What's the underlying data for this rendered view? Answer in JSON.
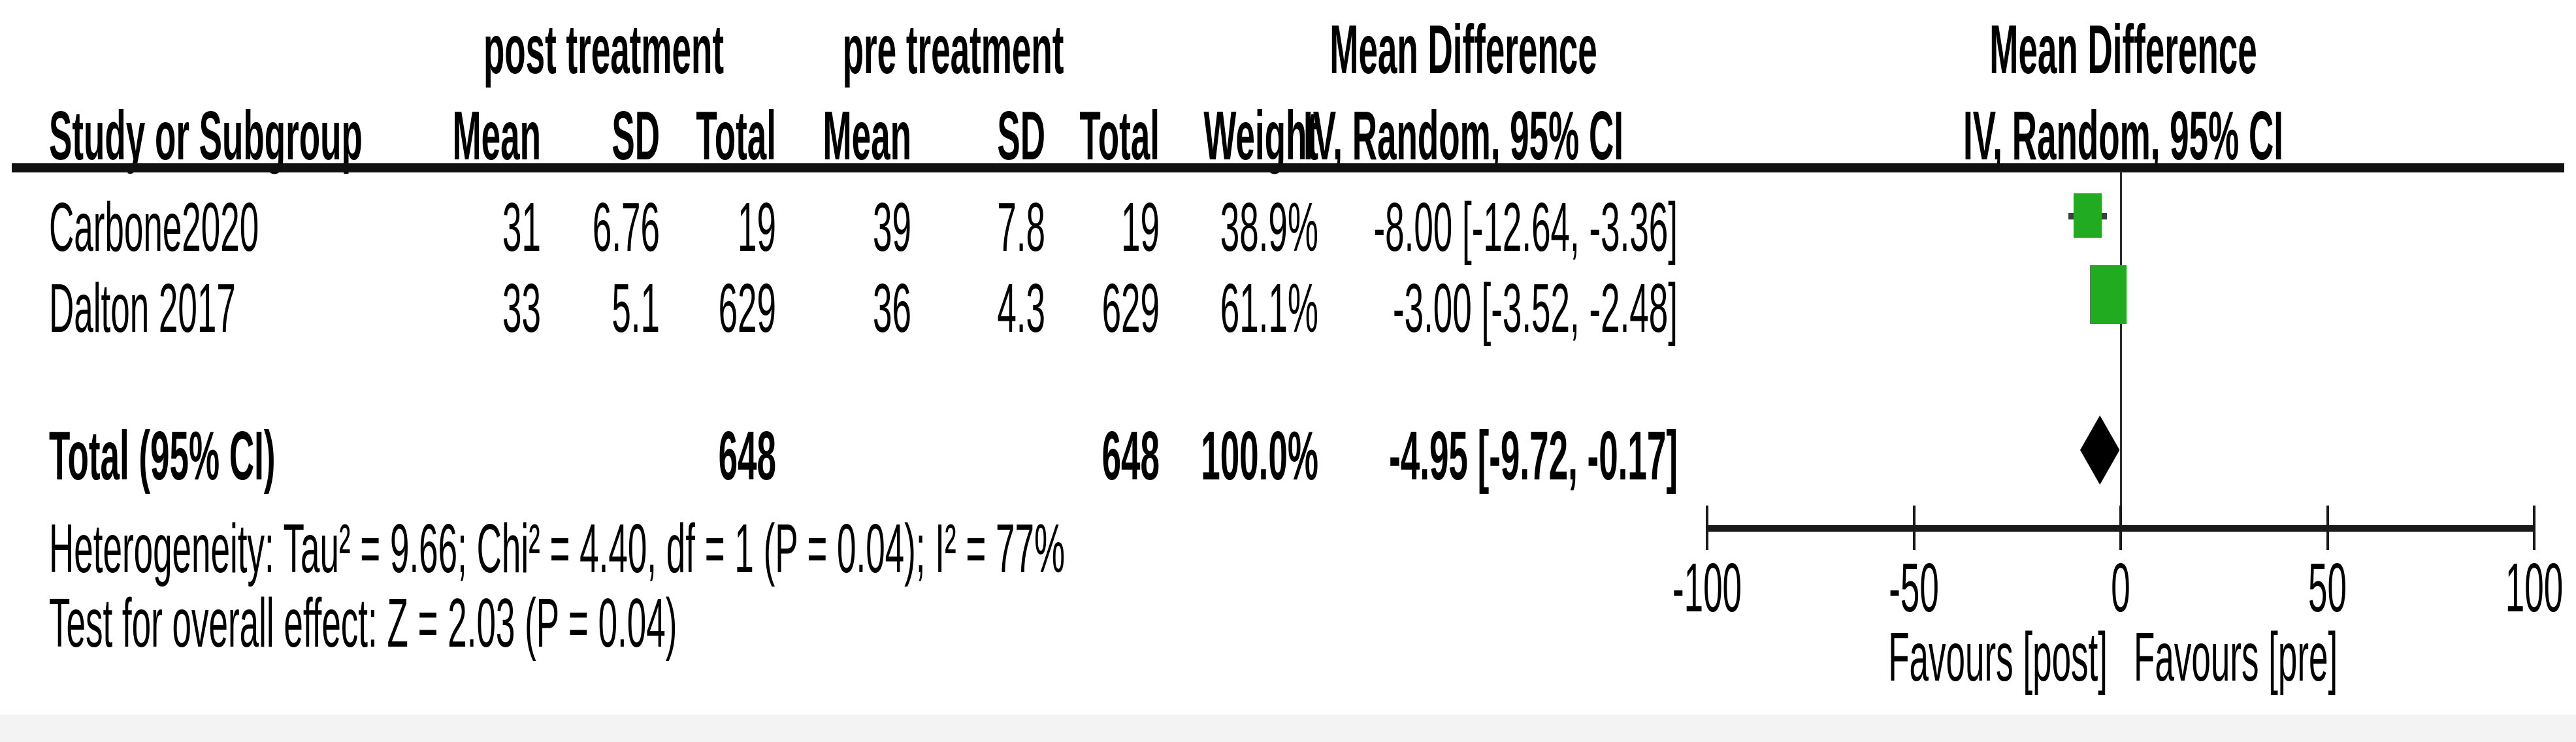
{
  "accent_colors": {
    "square_green": "#21ab21",
    "diamond_black": "#000000",
    "whisker_gray": "#3f3f3f"
  },
  "header": {
    "group_post": "post treatment",
    "group_pre": "pre treatment",
    "md_text_title": "Mean Difference",
    "md_text_subtitle": "IV, Random, 95% CI",
    "md_plot_title": "Mean Difference",
    "md_plot_subtitle": "IV, Random, 95% CI",
    "study": "Study or Subgroup",
    "post_mean": "Mean",
    "post_sd": "SD",
    "post_total": "Total",
    "pre_mean": "Mean",
    "pre_sd": "SD",
    "pre_total": "Total",
    "weight": "Weight"
  },
  "rows": [
    {
      "study": "Carbone2020",
      "post_mean": "31",
      "post_sd": "6.76",
      "post_total": "19",
      "pre_mean": "39",
      "pre_sd": "7.8",
      "pre_total": "19",
      "weight": "38.9%",
      "ci": "-8.00 [-12.64, -3.36]"
    },
    {
      "study": "Dalton 2017",
      "post_mean": "33",
      "post_sd": "5.1",
      "post_total": "629",
      "pre_mean": "36",
      "pre_sd": "4.3",
      "pre_total": "629",
      "weight": "61.1%",
      "ci": "-3.00 [-3.52, -2.48]"
    }
  ],
  "total_row": {
    "label": "Total (95% CI)",
    "post_total": "648",
    "pre_total": "648",
    "weight": "100.0%",
    "ci": "-4.95 [-9.72, -0.17]"
  },
  "footnotes": {
    "heterogeneity": "Heterogeneity: Tau² = 9.66; Chi² = 4.40, df = 1 (P = 0.04); I² = 77%",
    "overall_effect": "Test for overall effect: Z = 2.03 (P = 0.04)"
  },
  "axis": {
    "tick_labels": [
      "-100",
      "-50",
      "0",
      "50",
      "100"
    ],
    "favours_left": "Favours [post]",
    "favours_right": "Favours [pre]"
  },
  "chart_data": {
    "type": "forest",
    "effect_measure": "Mean Difference, IV, Random, 95% CI",
    "x_axis": {
      "min": -100,
      "max": 100,
      "ticks": [
        -100,
        -50,
        0,
        50,
        100
      ],
      "label_left": "Favours [post]",
      "label_right": "Favours [pre]"
    },
    "studies": [
      {
        "name": "Carbone2020",
        "post_mean": 31,
        "post_sd": 6.76,
        "post_total": 19,
        "pre_mean": 39,
        "pre_sd": 7.8,
        "pre_total": 19,
        "weight_pct": 38.9,
        "md": -8.0,
        "ci_low": -12.64,
        "ci_high": -3.36
      },
      {
        "name": "Dalton 2017",
        "post_mean": 33,
        "post_sd": 5.1,
        "post_total": 629,
        "pre_mean": 36,
        "pre_sd": 4.3,
        "pre_total": 629,
        "weight_pct": 61.1,
        "md": -3.0,
        "ci_low": -3.52,
        "ci_high": -2.48
      }
    ],
    "total": {
      "post_total": 648,
      "pre_total": 648,
      "weight_pct": 100.0,
      "md": -4.95,
      "ci_low": -9.72,
      "ci_high": -0.17
    },
    "heterogeneity": {
      "tau2": 9.66,
      "chi2": 4.4,
      "df": 1,
      "p": 0.04,
      "i2_pct": 77
    },
    "overall_effect": {
      "z": 2.03,
      "p": 0.04
    }
  }
}
